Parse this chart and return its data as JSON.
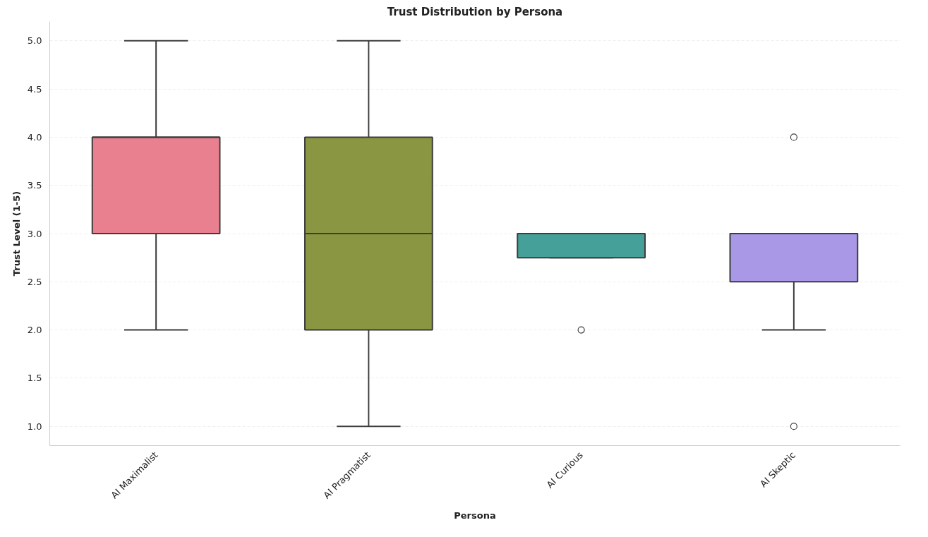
{
  "chart_data": {
    "type": "box",
    "title": "Trust Distribution by Persona",
    "xlabel": "Persona",
    "ylabel": "Trust Level (1-5)",
    "categories": [
      "AI Maximalist",
      "AI Pragmatist",
      "AI Curious",
      "AI Skeptic"
    ],
    "colors": [
      "#e8808f",
      "#8a9642",
      "#45a09a",
      "#a998e6"
    ],
    "boxes": [
      {
        "low": 2,
        "q1": 3,
        "median": 4,
        "q3": 4,
        "high": 5
      },
      {
        "low": 1,
        "q1": 2,
        "median": 3,
        "q3": 4,
        "high": 5
      },
      {
        "low": 2.75,
        "q1": 2.75,
        "median": 3,
        "q3": 3,
        "high": 3,
        "outliers": [
          2
        ]
      },
      {
        "low": 2,
        "q1": 2.5,
        "median": 3,
        "q3": 3,
        "high": 3,
        "outliers": [
          4,
          1
        ]
      }
    ],
    "ylim": [
      0.8,
      5.2
    ],
    "yticks": [
      {
        "value": 1,
        "label": "1.0"
      },
      1.5,
      {
        "value": 2,
        "label": "2.0"
      },
      2.5,
      {
        "value": 3,
        "label": "3.0"
      },
      3.5,
      {
        "value": 4,
        "label": "4.0"
      },
      4.5,
      {
        "value": 5,
        "label": "5.0"
      }
    ],
    "grid": "y"
  }
}
